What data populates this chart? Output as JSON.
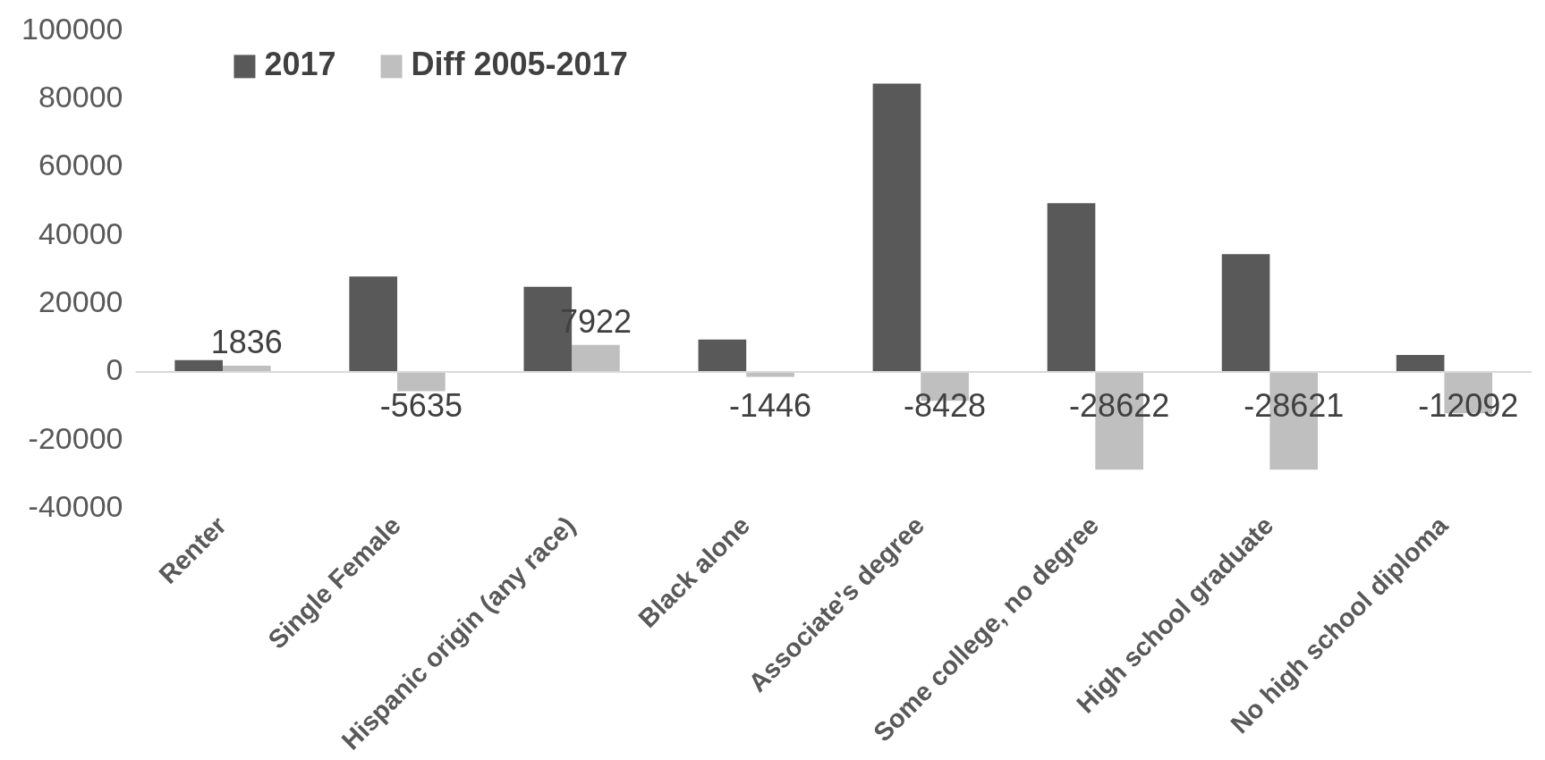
{
  "chart_data": {
    "type": "bar",
    "categories": [
      "Renter",
      "Single Female",
      "Hispanic origin (any race)",
      "Black alone",
      "Associate's degree",
      "Some college, no degree",
      "High school graduate",
      "No high school diploma"
    ],
    "series": [
      {
        "name": "2017",
        "color": "#595959",
        "values": [
          3500,
          28000,
          25000,
          9500,
          84500,
          49500,
          34500,
          5000
        ]
      },
      {
        "name": "Diff 2005-2017",
        "color": "#bfbfbf",
        "values": [
          1836,
          -5635,
          7922,
          -1446,
          -8428,
          -28622,
          -28621,
          -12092
        ],
        "value_labels": [
          "1836",
          "-5635",
          "7922",
          "-1446",
          "-8428",
          "-28622",
          "-28621",
          "-12092"
        ]
      }
    ],
    "ylim": [
      -40000,
      100000
    ],
    "yticks": [
      -40000,
      -20000,
      0,
      20000,
      40000,
      60000,
      80000,
      100000
    ],
    "grid": false,
    "ref_lines": [
      {
        "axis": "y",
        "value": 0,
        "color": "#d9d9d9"
      }
    ],
    "legend": "top left"
  }
}
